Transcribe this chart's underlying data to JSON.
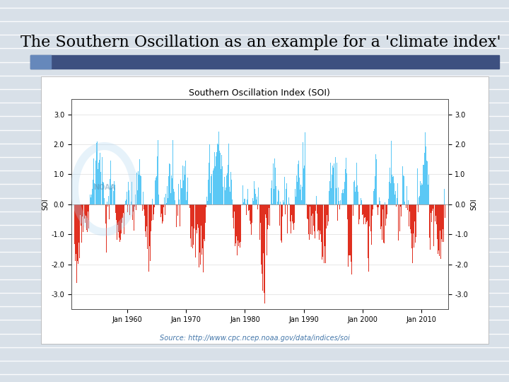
{
  "title": "The Southern Oscillation as an example for a 'climate index'",
  "chart_title": "Southern Oscillation Index (SOI)",
  "ylabel": "SOI",
  "source_text": "Source: http://www.cpc.ncep.noaa.gov/data/indices/soi",
  "x_start_year": 1951,
  "x_end_year": 2014,
  "ylim": [
    -3.5,
    3.5
  ],
  "yticks": [
    -3.0,
    -2.0,
    -1.0,
    0.0,
    1.0,
    2.0,
    3.0
  ],
  "xtick_years": [
    1960,
    1970,
    1980,
    1990,
    2000,
    2010
  ],
  "xtick_labels": [
    "Jan 1960",
    "Jan 1970",
    "Jan 1980",
    "Jan 1990",
    "Jan 2000",
    "Jan 2010"
  ],
  "positive_color": "#5BC8F5",
  "negative_color": "#E03020",
  "slide_bg": "#D8E0E8",
  "slide_lines_color": "#FFFFFF",
  "chart_bg": "#FFFFFF",
  "header_bar_color": "#3D5080",
  "header_bar_left_color": "#6688BB",
  "title_fontsize": 16,
  "chart_title_fontsize": 9,
  "axis_label_fontsize": 7,
  "source_fontsize": 7,
  "tick_label_fontsize": 7
}
